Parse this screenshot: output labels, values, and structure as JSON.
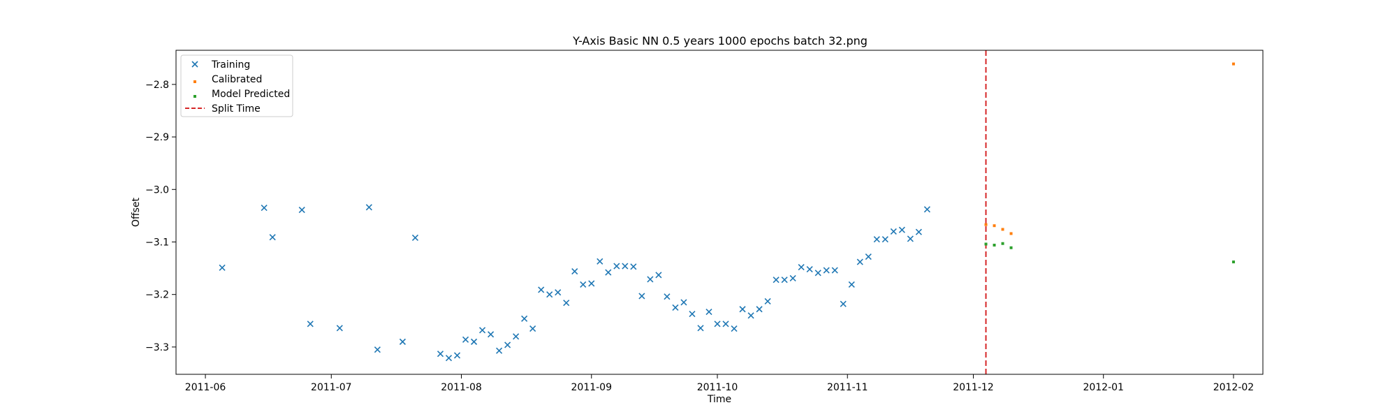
{
  "chart_data": {
    "type": "scatter",
    "title": "Y-Axis Basic NN 0.5 years 1000 epochs batch 32.png",
    "xlabel": "Time",
    "ylabel": "Offset",
    "xlim": [
      "2011-05-25",
      "2012-02-08"
    ],
    "ylim": [
      -3.352,
      -2.735
    ],
    "x_ticks": [
      "2011-06",
      "2011-07",
      "2011-08",
      "2011-09",
      "2011-10",
      "2011-11",
      "2011-12",
      "2012-01",
      "2012-02"
    ],
    "y_ticks": [
      -3.3,
      -3.2,
      -3.1,
      -3.0,
      -2.9,
      -2.8
    ],
    "y_tick_labels": [
      "−3.3",
      "−3.2",
      "−3.1",
      "−3.0",
      "−2.9",
      "−2.8"
    ],
    "grid": false,
    "legend_position": "upper-left",
    "split_time": {
      "label": "Split Time",
      "x": "2011-12-04",
      "color": "#d62728",
      "style": "dashed"
    },
    "series": [
      {
        "name": "Training",
        "marker": "x",
        "color": "#1f77b4",
        "points": [
          [
            "2011-06-05",
            -3.149
          ],
          [
            "2011-06-15",
            -3.035
          ],
          [
            "2011-06-17",
            -3.091
          ],
          [
            "2011-06-24",
            -3.039
          ],
          [
            "2011-06-26",
            -3.256
          ],
          [
            "2011-07-03",
            -3.264
          ],
          [
            "2011-07-10",
            -3.034
          ],
          [
            "2011-07-12",
            -3.305
          ],
          [
            "2011-07-18",
            -3.29
          ],
          [
            "2011-07-21",
            -3.092
          ],
          [
            "2011-07-27",
            -3.313
          ],
          [
            "2011-07-29",
            -3.321
          ],
          [
            "2011-07-31",
            -3.316
          ],
          [
            "2011-08-02",
            -3.286
          ],
          [
            "2011-08-04",
            -3.29
          ],
          [
            "2011-08-06",
            -3.268
          ],
          [
            "2011-08-08",
            -3.276
          ],
          [
            "2011-08-10",
            -3.307
          ],
          [
            "2011-08-12",
            -3.296
          ],
          [
            "2011-08-14",
            -3.28
          ],
          [
            "2011-08-16",
            -3.246
          ],
          [
            "2011-08-18",
            -3.265
          ],
          [
            "2011-08-20",
            -3.191
          ],
          [
            "2011-08-22",
            -3.2
          ],
          [
            "2011-08-24",
            -3.196
          ],
          [
            "2011-08-26",
            -3.216
          ],
          [
            "2011-08-28",
            -3.156
          ],
          [
            "2011-08-30",
            -3.181
          ],
          [
            "2011-09-01",
            -3.179
          ],
          [
            "2011-09-03",
            -3.137
          ],
          [
            "2011-09-05",
            -3.158
          ],
          [
            "2011-09-07",
            -3.146
          ],
          [
            "2011-09-09",
            -3.146
          ],
          [
            "2011-09-11",
            -3.147
          ],
          [
            "2011-09-13",
            -3.203
          ],
          [
            "2011-09-15",
            -3.171
          ],
          [
            "2011-09-17",
            -3.163
          ],
          [
            "2011-09-19",
            -3.204
          ],
          [
            "2011-09-21",
            -3.225
          ],
          [
            "2011-09-23",
            -3.215
          ],
          [
            "2011-09-25",
            -3.237
          ],
          [
            "2011-09-27",
            -3.264
          ],
          [
            "2011-09-29",
            -3.233
          ],
          [
            "2011-10-01",
            -3.256
          ],
          [
            "2011-10-03",
            -3.256
          ],
          [
            "2011-10-05",
            -3.265
          ],
          [
            "2011-10-07",
            -3.228
          ],
          [
            "2011-10-09",
            -3.24
          ],
          [
            "2011-10-11",
            -3.228
          ],
          [
            "2011-10-13",
            -3.213
          ],
          [
            "2011-10-15",
            -3.172
          ],
          [
            "2011-10-17",
            -3.172
          ],
          [
            "2011-10-19",
            -3.169
          ],
          [
            "2011-10-21",
            -3.148
          ],
          [
            "2011-10-23",
            -3.152
          ],
          [
            "2011-10-25",
            -3.159
          ],
          [
            "2011-10-27",
            -3.154
          ],
          [
            "2011-10-29",
            -3.154
          ],
          [
            "2011-10-31",
            -3.218
          ],
          [
            "2011-11-02",
            -3.181
          ],
          [
            "2011-11-04",
            -3.138
          ],
          [
            "2011-11-06",
            -3.128
          ],
          [
            "2011-11-08",
            -3.095
          ],
          [
            "2011-11-10",
            -3.095
          ],
          [
            "2011-11-12",
            -3.08
          ],
          [
            "2011-11-14",
            -3.077
          ],
          [
            "2011-11-16",
            -3.094
          ],
          [
            "2011-11-18",
            -3.081
          ],
          [
            "2011-11-20",
            -3.038
          ]
        ]
      },
      {
        "name": "Calibrated",
        "marker": "s",
        "color": "#ff7f0e",
        "points": [
          [
            "2011-12-04",
            -3.067
          ],
          [
            "2011-12-06",
            -3.069
          ],
          [
            "2011-12-08",
            -3.076
          ],
          [
            "2011-12-10",
            -3.084
          ],
          [
            "2012-02-01",
            -2.761
          ]
        ]
      },
      {
        "name": "Model Predicted",
        "marker": "s",
        "color": "#2ca02c",
        "points": [
          [
            "2011-12-04",
            -3.104
          ],
          [
            "2011-12-06",
            -3.106
          ],
          [
            "2011-12-08",
            -3.103
          ],
          [
            "2011-12-10",
            -3.111
          ],
          [
            "2012-02-01",
            -3.138
          ]
        ]
      }
    ]
  }
}
